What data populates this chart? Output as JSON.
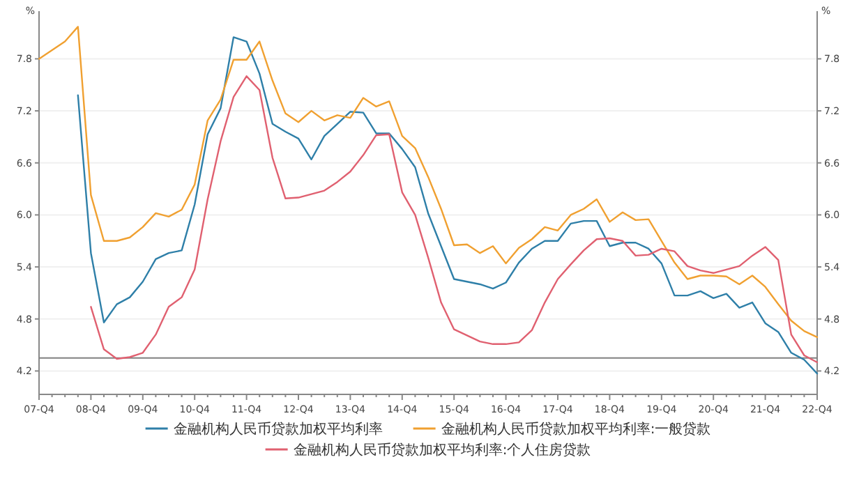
{
  "chart_data": {
    "type": "line",
    "ylabel": "%",
    "y2label": "%",
    "categories": [
      "07-Q4",
      null,
      null,
      null,
      "08-Q4",
      null,
      null,
      null,
      "09-Q4",
      null,
      null,
      null,
      "10-Q4",
      null,
      null,
      null,
      "11-Q4",
      null,
      null,
      null,
      "12-Q4",
      null,
      null,
      null,
      "13-Q4",
      null,
      null,
      null,
      "14-Q4",
      null,
      null,
      null,
      "15-Q4",
      null,
      null,
      null,
      "16-Q4",
      null,
      null,
      null,
      "17-Q4",
      null,
      null,
      null,
      "18-Q4",
      null,
      null,
      null,
      "19-Q4",
      null,
      null,
      null,
      "20-Q4",
      null,
      null,
      null,
      "21-Q4",
      null,
      null,
      null,
      "22-Q4"
    ],
    "ylim": [
      3.93,
      8.35
    ],
    "yticks": [
      4.2,
      4.8,
      5.4,
      {
        "value": 6,
        "label": "6.0"
      },
      6.6,
      7.2,
      7.8
    ],
    "y2lim": [
      3.93,
      8.35
    ],
    "y2ticks": [
      4.2,
      4.8,
      5.4,
      {
        "value": 6,
        "label": "6.0"
      },
      6.6,
      7.2,
      7.8
    ],
    "grid": "y",
    "legend": "bottom",
    "line_style": "solid",
    "marker": "none",
    "ref_lines": [
      {
        "axis": "y",
        "value": 4.35,
        "color": "#808080"
      }
    ],
    "series": [
      {
        "name": "金融机构人民币贷款加权平均利率",
        "color": "#2e7fa8",
        "values": [
          null,
          null,
          null,
          7.38,
          5.56,
          4.76,
          4.97,
          5.05,
          5.23,
          5.49,
          5.56,
          5.59,
          6.12,
          6.93,
          7.23,
          8.05,
          8.0,
          7.63,
          7.05,
          6.96,
          6.88,
          6.64,
          6.91,
          7.05,
          7.19,
          7.18,
          6.94,
          6.94,
          6.76,
          6.55,
          6.02,
          5.64,
          5.26,
          5.23,
          5.2,
          5.15,
          5.22,
          5.45,
          5.61,
          5.7,
          5.7,
          5.9,
          5.93,
          5.93,
          5.64,
          5.68,
          5.68,
          5.61,
          5.44,
          5.07,
          5.07,
          5.12,
          5.04,
          5.09,
          4.93,
          4.99,
          4.75,
          4.65,
          4.41,
          4.33,
          4.17
        ]
      },
      {
        "name": "金融机构人民币贷款加权平均利率:一般贷款",
        "color": "#f0a030",
        "values": [
          7.8,
          7.9,
          8.0,
          8.17,
          6.23,
          5.7,
          5.7,
          5.74,
          5.86,
          6.02,
          5.98,
          6.06,
          6.35,
          7.09,
          7.33,
          7.79,
          7.79,
          8.0,
          7.55,
          7.17,
          7.07,
          7.2,
          7.09,
          7.15,
          7.12,
          7.35,
          7.25,
          7.31,
          6.91,
          6.77,
          6.44,
          6.07,
          5.65,
          5.66,
          5.56,
          5.64,
          5.44,
          5.62,
          5.72,
          5.86,
          5.82,
          6.0,
          6.07,
          6.18,
          5.92,
          6.03,
          5.94,
          5.95,
          5.7,
          5.45,
          5.26,
          5.3,
          5.3,
          5.29,
          5.2,
          5.3,
          5.17,
          4.97,
          4.78,
          4.66,
          4.59
        ]
      },
      {
        "name": "金融机构人民币贷款加权平均利率:个人住房贷款",
        "color": "#e06070",
        "values": [
          null,
          null,
          null,
          null,
          4.94,
          4.45,
          4.34,
          4.36,
          4.41,
          4.62,
          4.94,
          5.05,
          5.37,
          6.18,
          6.85,
          7.36,
          7.6,
          7.44,
          6.66,
          6.19,
          6.2,
          6.24,
          6.28,
          6.38,
          6.5,
          6.69,
          6.92,
          6.93,
          6.26,
          6.0,
          5.51,
          4.99,
          4.68,
          4.61,
          4.54,
          4.51,
          4.51,
          4.53,
          4.67,
          4.99,
          5.26,
          5.43,
          5.59,
          5.72,
          5.73,
          5.7,
          5.53,
          5.54,
          5.61,
          5.58,
          5.41,
          5.36,
          5.33,
          5.37,
          5.41,
          5.53,
          5.63,
          5.48,
          4.62,
          4.38,
          4.3
        ]
      }
    ]
  }
}
